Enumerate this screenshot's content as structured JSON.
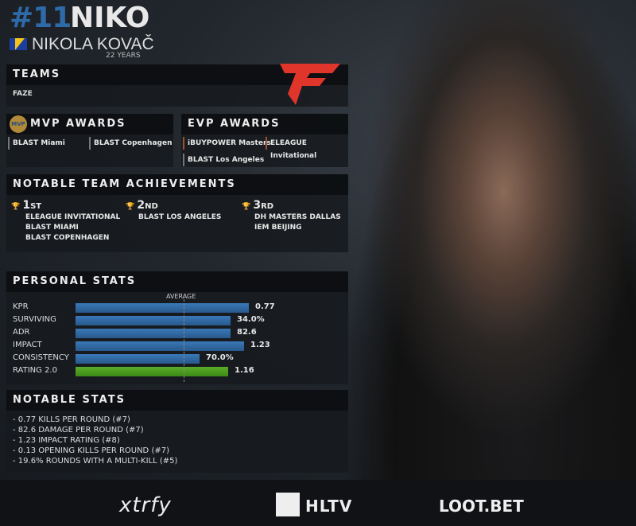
{
  "player": {
    "number": "#11",
    "nickname": "NIKO",
    "real_name": "NIKOLA KOVAČ",
    "age": "22 YEARS",
    "country_flag": "bosnia-and-herzegovina"
  },
  "teams": {
    "title": "TEAMS",
    "current": "FAZE",
    "logo": "faze-clan-logo"
  },
  "mvp": {
    "title": "MVP AWARDS",
    "badge": "MVP",
    "items": [
      "BLAST Miami",
      "BLAST Copenhagen"
    ]
  },
  "evp": {
    "title": "EVP AWARDS",
    "items": [
      "iBUYPOWER Masters",
      "ELEAGUE Invitational",
      "BLAST Los Angeles"
    ]
  },
  "achievements": {
    "title": "NOTABLE TEAM ACHIEVEMENTS",
    "groups": [
      {
        "place": "1",
        "suffix": "ST",
        "trophy": "gold",
        "events": [
          "ELEAGUE INVITATIONAL",
          "BLAST MIAMI",
          "BLAST COPENHAGEN"
        ]
      },
      {
        "place": "2",
        "suffix": "ND",
        "trophy": "silver",
        "events": [
          "BLAST LOS ANGELES"
        ]
      },
      {
        "place": "3",
        "suffix": "RD",
        "trophy": "bronze",
        "events": [
          "DH MASTERS DALLAS",
          "IEM BEIJING"
        ]
      }
    ]
  },
  "personal_stats": {
    "title": "PERSONAL STATS",
    "average_label": "AVERAGE",
    "colors": {
      "bar": "#2e6aa8",
      "rating": "#4e9e22"
    },
    "rows": [
      {
        "label": "KPR",
        "value": "0.77",
        "fill": 0.74
      },
      {
        "label": "SURVIVING",
        "value": "34.0%",
        "fill": 0.66
      },
      {
        "label": "ADR",
        "value": "82.6",
        "fill": 0.66
      },
      {
        "label": "IMPACT",
        "value": "1.23",
        "fill": 0.72
      },
      {
        "label": "CONSISTENCY",
        "value": "70.0%",
        "fill": 0.53
      },
      {
        "label": "RATING 2.0",
        "value": "1.16",
        "fill": 0.65
      }
    ]
  },
  "notable_stats": {
    "title": "NOTABLE STATS",
    "items": [
      "- 0.77 KILLS PER ROUND (#7)",
      "- 82.6 DAMAGE PER ROUND (#7)",
      "- 1.23 IMPACT RATING (#8)",
      "- 0.13 OPENING KILLS PER ROUND (#7)",
      "- 19.6% ROUNDS WITH A MULTI-KILL (#5)"
    ]
  },
  "sponsors": {
    "xtrfy": "xtrfy",
    "hltv": "HLTV",
    "loot": "LOOT.BET"
  }
}
